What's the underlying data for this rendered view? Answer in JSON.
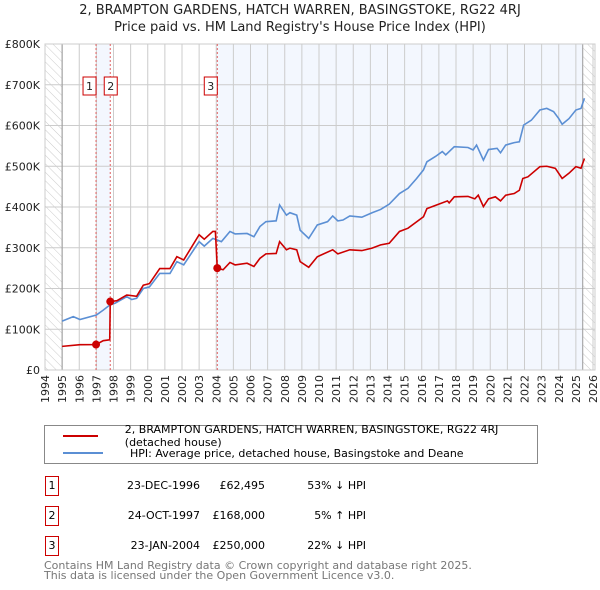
{
  "chart_data": {
    "type": "line",
    "title": "2, BRAMPTON GARDENS, HATCH WARREN, BASINGSTOKE, RG22 4RJ",
    "subtitle": "Price paid vs. HM Land Registry's House Price Index (HPI)",
    "xlim": [
      1994,
      2026
    ],
    "ylim": [
      0,
      800000
    ],
    "x_ticks": [
      "1994",
      "1995",
      "1996",
      "1997",
      "1998",
      "1999",
      "2000",
      "2001",
      "2002",
      "2003",
      "2004",
      "2005",
      "2006",
      "2007",
      "2008",
      "2009",
      "2010",
      "2011",
      "2012",
      "2013",
      "2014",
      "2015",
      "2016",
      "2017",
      "2018",
      "2019",
      "2020",
      "2021",
      "2022",
      "2023",
      "2024",
      "2025",
      "2026"
    ],
    "y_ticks": [
      {
        "v": 0,
        "label": "£0"
      },
      {
        "v": 100000,
        "label": "£100K"
      },
      {
        "v": 200000,
        "label": "£200K"
      },
      {
        "v": 300000,
        "label": "£300K"
      },
      {
        "v": 400000,
        "label": "£400K"
      },
      {
        "v": 500000,
        "label": "£500K"
      },
      {
        "v": 600000,
        "label": "£600K"
      },
      {
        "v": 700000,
        "label": "£700K"
      },
      {
        "v": 800000,
        "label": "£800K"
      }
    ],
    "grid": true,
    "series": [
      {
        "name": "2, BRAMPTON GARDENS, HATCH WARREN, BASINGSTOKE, RG22 4RJ (detached house)",
        "color": "#cc0000",
        "x": [
          1995.0,
          1996.04,
          1996.98,
          1997.4,
          1997.78,
          1997.81,
          1998.2,
          1998.77,
          1999.35,
          1999.74,
          2000.1,
          2000.7,
          2001.3,
          2001.7,
          2002.1,
          2003.0,
          2003.3,
          2003.8,
          2003.95,
          2004.06,
          2004.4,
          2004.8,
          2005.1,
          2005.8,
          2006.2,
          2006.55,
          2006.9,
          2007.5,
          2007.7,
          2008.1,
          2008.3,
          2008.7,
          2008.9,
          2009.4,
          2009.9,
          2010.8,
          2011.1,
          2011.8,
          2012.5,
          2013.1,
          2013.6,
          2014.1,
          2014.7,
          2015.2,
          2016.1,
          2016.3,
          2017.0,
          2017.5,
          2017.6,
          2017.9,
          2018.7,
          2019.1,
          2019.3,
          2019.6,
          2019.9,
          2020.3,
          2020.6,
          2020.9,
          2021.4,
          2021.7,
          2021.9,
          2022.2,
          2022.9,
          2023.3,
          2023.8,
          2024.2,
          2024.6,
          2025.0,
          2025.3,
          2025.5
        ],
        "y": [
          58000,
          62000,
          62495,
          72000,
          74000,
          168000,
          170000,
          184000,
          181000,
          208000,
          212000,
          249000,
          249000,
          278000,
          270000,
          332000,
          321000,
          340000,
          340000,
          250000,
          246000,
          264000,
          258000,
          262000,
          254000,
          274000,
          285000,
          286000,
          315000,
          295000,
          299000,
          295000,
          266000,
          252000,
          278000,
          295000,
          285000,
          295000,
          293000,
          299000,
          307000,
          311000,
          340000,
          348000,
          376000,
          396000,
          407000,
          415000,
          410000,
          425000,
          426000,
          420000,
          429000,
          401000,
          420000,
          425000,
          415000,
          429000,
          433000,
          441000,
          470000,
          474000,
          499000,
          500000,
          495000,
          470000,
          483000,
          499000,
          495000,
          519000
        ]
      },
      {
        "name": "HPI: Average price, detached house, Basingstoke and Deane",
        "color": "#5b8fd4",
        "x": [
          1995.0,
          1995.65,
          1996.04,
          1997.0,
          1997.4,
          1997.8,
          1998.1,
          1998.77,
          1999.06,
          1999.35,
          1999.74,
          2000.1,
          2000.7,
          2001.3,
          2001.7,
          2002.1,
          2003.0,
          2003.3,
          2003.8,
          2004.3,
          2004.8,
          2005.1,
          2005.8,
          2006.2,
          2006.55,
          2006.9,
          2007.5,
          2007.7,
          2008.1,
          2008.3,
          2008.7,
          2008.9,
          2009.4,
          2009.9,
          2010.5,
          2010.8,
          2011.1,
          2011.4,
          2011.8,
          2012.5,
          2013.1,
          2013.6,
          2014.1,
          2014.7,
          2015.2,
          2015.7,
          2016.1,
          2016.3,
          2016.8,
          2017.2,
          2017.4,
          2017.9,
          2018.7,
          2019.0,
          2019.2,
          2019.6,
          2019.9,
          2020.4,
          2020.6,
          2020.9,
          2021.4,
          2021.7,
          2021.95,
          2022.4,
          2022.9,
          2023.3,
          2023.7,
          2024.0,
          2024.2,
          2024.6,
          2025.0,
          2025.3,
          2025.5
        ],
        "y": [
          120000,
          131000,
          124000,
          135000,
          147000,
          160000,
          164000,
          180000,
          173000,
          176000,
          200000,
          204000,
          237000,
          237000,
          266000,
          258000,
          315000,
          304000,
          323000,
          315000,
          340000,
          334000,
          335000,
          327000,
          352000,
          364000,
          366000,
          405000,
          380000,
          386000,
          380000,
          343000,
          323000,
          356000,
          364000,
          378000,
          366000,
          368000,
          378000,
          375000,
          386000,
          394000,
          407000,
          433000,
          446000,
          470000,
          491000,
          511000,
          524000,
          536000,
          528000,
          548000,
          546000,
          540000,
          552000,
          515000,
          541000,
          544000,
          533000,
          552000,
          558000,
          560000,
          601000,
          613000,
          638000,
          642000,
          634000,
          617000,
          603000,
          617000,
          638000,
          642000,
          667000
        ]
      }
    ],
    "sales": [
      {
        "n": "1",
        "x": 1996.98,
        "y": 62495,
        "date": "23-DEC-1996",
        "price": "£62,495",
        "hpi": "53% ↓ HPI"
      },
      {
        "n": "2",
        "x": 1997.81,
        "y": 168000,
        "date": "24-OCT-1997",
        "price": "£168,000",
        "hpi": "5% ↑ HPI"
      },
      {
        "n": "3",
        "x": 2004.06,
        "y": 250000,
        "date": "23-JAN-2004",
        "price": "£250,000",
        "hpi": "22% ↓ HPI"
      }
    ],
    "data_start": 1995.0,
    "data_end": 2025.4
  },
  "footer": [
    "Contains HM Land Registry data © Crown copyright and database right 2025.",
    "This data is licensed under the Open Government Licence v3.0."
  ]
}
